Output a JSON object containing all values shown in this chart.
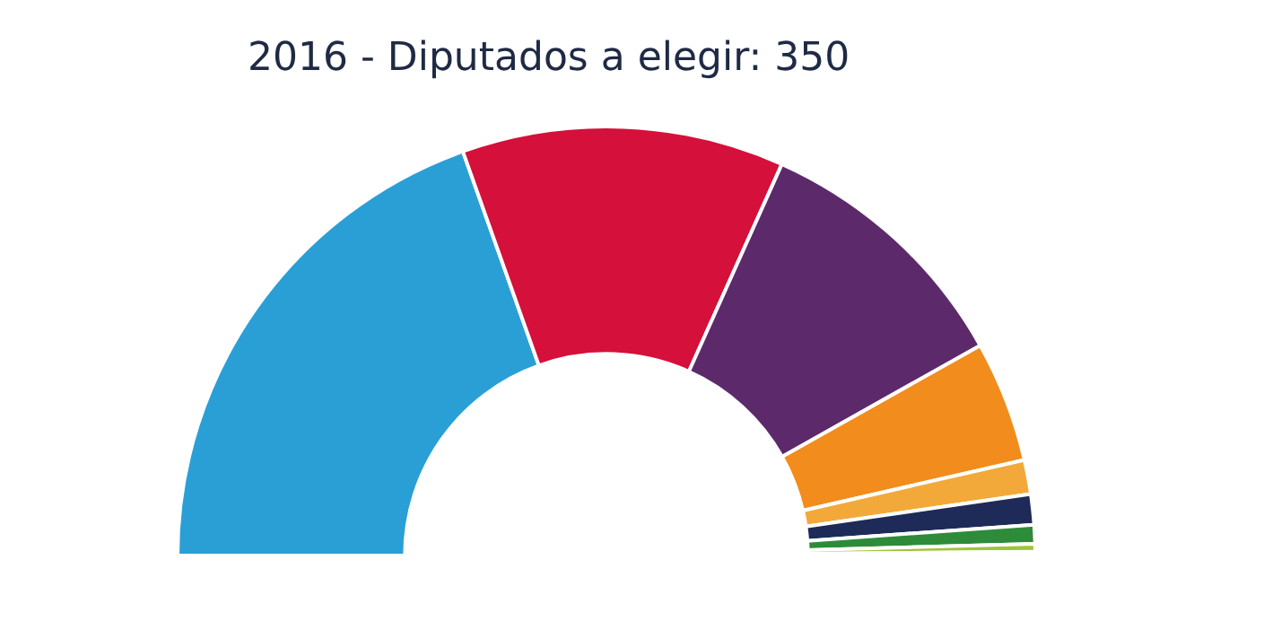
{
  "chart_data": {
    "type": "donut",
    "title": "2016 - Diputados a elegir: 350",
    "categories": [
      null,
      null,
      null,
      null,
      null,
      null,
      null,
      null,
      null
    ],
    "values": [
      39.13,
      24.29,
      20.29,
      9.14,
      2.57,
      2.29,
      1.43,
      0.57,
      0.29
    ],
    "colors": [
      "#2a9fd6",
      "#d5103a",
      "#5c2a6b",
      "#f28c1c",
      "#f3a93a",
      "#1e2a57",
      "#2e8b3a",
      "#9fc43a",
      "#f4f08c"
    ],
    "legend": false
  }
}
